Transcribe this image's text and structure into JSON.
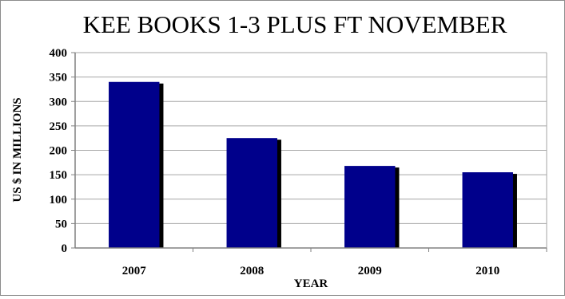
{
  "chart_data": {
    "type": "bar",
    "title": "KEE BOOKS 1-3 PLUS FT NOVEMBER",
    "xlabel": "YEAR",
    "ylabel": "US $ IN MILLIONS",
    "categories": [
      "2007",
      "2008",
      "2009",
      "2010"
    ],
    "values": [
      340,
      225,
      168,
      155
    ],
    "ylim": [
      0,
      400
    ],
    "yticks": [
      "0",
      "50",
      "100",
      "150",
      "200",
      "250",
      "300",
      "350",
      "400"
    ],
    "grid": true,
    "legend": "none",
    "colors": {
      "bar": "#00008b",
      "shadow": "#000000",
      "grid": "#a6a6a6",
      "axis": "#808080"
    }
  }
}
